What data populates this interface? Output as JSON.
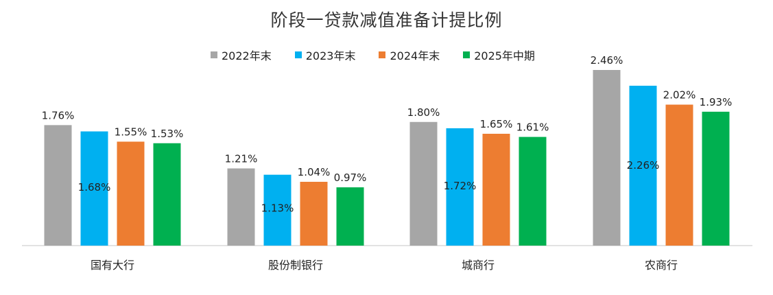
{
  "chart_data": {
    "type": "bar",
    "title": "阶段一贷款减值准备计提比例",
    "categories": [
      "国有大行",
      "股份制银行",
      "城商行",
      "农商行"
    ],
    "series": [
      {
        "name": "2022年末",
        "color": "#a6a6a6",
        "values": [
          1.76,
          1.21,
          1.8,
          2.46
        ],
        "labels": [
          "1.76%",
          "1.21%",
          "1.80%",
          "2.46%"
        ],
        "label_inside": false
      },
      {
        "name": "2023年末",
        "color": "#00b0f0",
        "values": [
          1.68,
          1.13,
          1.72,
          2.26
        ],
        "labels": [
          "1.68%",
          "1.13%",
          "1.72%",
          "2.26%"
        ],
        "label_inside": true
      },
      {
        "name": "2024年末",
        "color": "#ed7d31",
        "values": [
          1.55,
          1.04,
          1.65,
          2.02
        ],
        "labels": [
          "1.55%",
          "1.04%",
          "1.65%",
          "2.02%"
        ],
        "label_inside": false
      },
      {
        "name": "2025年中期",
        "color": "#00b050",
        "values": [
          1.53,
          0.97,
          1.61,
          1.93
        ],
        "labels": [
          "1.53%",
          "0.97%",
          "1.61%",
          "1.93%"
        ],
        "label_inside": false
      }
    ],
    "ylim": [
      0.23,
      2.46
    ],
    "grid": false,
    "legend_position": "top"
  }
}
